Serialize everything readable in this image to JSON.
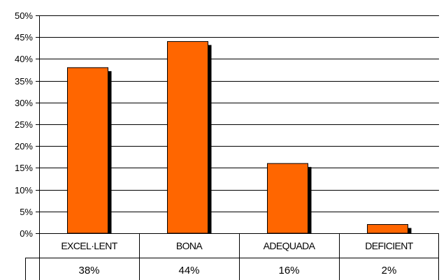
{
  "chart_data": {
    "type": "bar",
    "categories": [
      "EXCEL·LENT",
      "BONA",
      "ADEQUADA",
      "DEFICIENT"
    ],
    "values": [
      38,
      44,
      16,
      2
    ],
    "value_labels": [
      "38%",
      "44%",
      "16%",
      "2%"
    ],
    "y_ticks": [
      "0%",
      "5%",
      "10%",
      "15%",
      "20%",
      "25%",
      "30%",
      "35%",
      "40%",
      "45%",
      "50%"
    ],
    "ylim": [
      0,
      50
    ],
    "grid": true,
    "legend": "none",
    "bar_color": "#FF6600",
    "bar_shadow_color": "#000000",
    "has_data_table": true
  }
}
